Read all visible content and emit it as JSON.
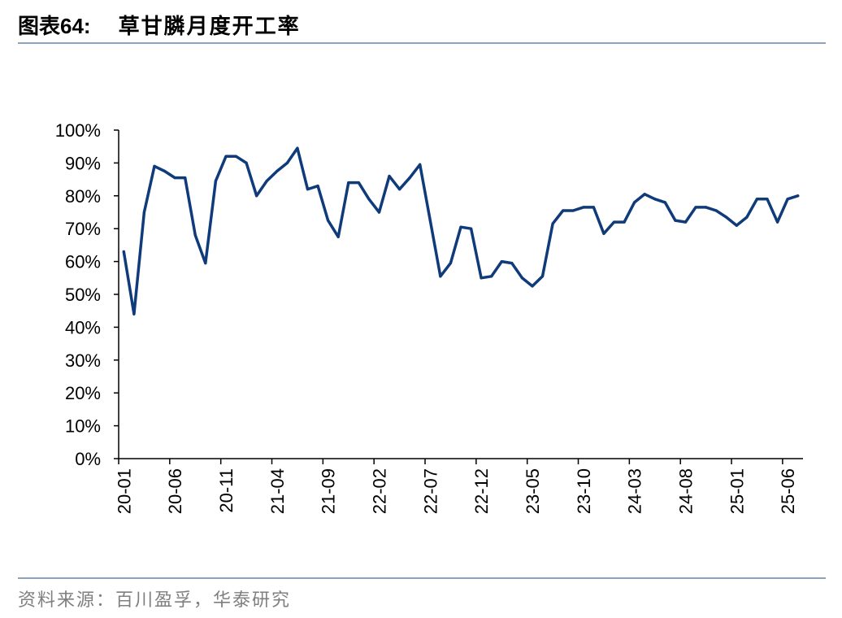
{
  "header": {
    "figure_number": "图表64:",
    "title": "草甘膦月度开工率"
  },
  "source": "资料来源：百川盈孚，华泰研究",
  "colors": {
    "line": "#0f3b7a",
    "rule": "#8fa3b8",
    "source_text": "#7f7f7f"
  },
  "chart_data": {
    "type": "line",
    "title": "草甘膦月度开工率",
    "xlabel": "",
    "ylabel": "",
    "ylim": [
      0,
      100
    ],
    "y_ticks": [
      "0%",
      "10%",
      "20%",
      "30%",
      "40%",
      "50%",
      "60%",
      "70%",
      "80%",
      "90%",
      "100%"
    ],
    "x_tick_labels": [
      "20-01",
      "20-06",
      "20-11",
      "21-04",
      "21-09",
      "22-02",
      "22-07",
      "22-12",
      "23-05",
      "23-10",
      "24-03",
      "24-08",
      "25-01",
      "25-06"
    ],
    "grid": false,
    "x": [
      "20-01",
      "20-02",
      "20-03",
      "20-04",
      "20-05",
      "20-06",
      "20-07",
      "20-08",
      "20-09",
      "20-10",
      "20-11",
      "20-12",
      "21-01",
      "21-02",
      "21-03",
      "21-04",
      "21-05",
      "21-06",
      "21-07",
      "21-08",
      "21-09",
      "21-10",
      "21-11",
      "21-12",
      "22-01",
      "22-02",
      "22-03",
      "22-04",
      "22-05",
      "22-06",
      "22-07",
      "22-08",
      "22-09",
      "22-10",
      "22-11",
      "22-12",
      "23-01",
      "23-02",
      "23-03",
      "23-04",
      "23-05",
      "23-06",
      "23-07",
      "23-08",
      "23-09",
      "23-10",
      "23-11",
      "23-12",
      "24-01",
      "24-02",
      "24-03",
      "24-04",
      "24-05",
      "24-06",
      "24-07",
      "24-08",
      "24-09",
      "24-10",
      "24-11",
      "24-12",
      "25-01",
      "25-02",
      "25-03",
      "25-04",
      "25-05",
      "25-06",
      "25-07"
    ],
    "series": [
      {
        "values": [
          63,
          44,
          75,
          89,
          87.5,
          85.5,
          85.5,
          68,
          59.5,
          84.5,
          92,
          92,
          90,
          80,
          84.5,
          87.5,
          90,
          94.5,
          82,
          83,
          72.5,
          67.5,
          84,
          84,
          79,
          75,
          86,
          82,
          85.5,
          89.5,
          72.5,
          55.5,
          59.5,
          70.5,
          70,
          55,
          55.5,
          60,
          59.5,
          55,
          52.5,
          55.5,
          71.5,
          75.5,
          75.5,
          76.5,
          76.5,
          68.5,
          72,
          72,
          78,
          80.5,
          79,
          78,
          72.5,
          72,
          76.5,
          76.5,
          75.5,
          73.5,
          71,
          73.5,
          79,
          79,
          72,
          79,
          80
        ]
      }
    ]
  }
}
